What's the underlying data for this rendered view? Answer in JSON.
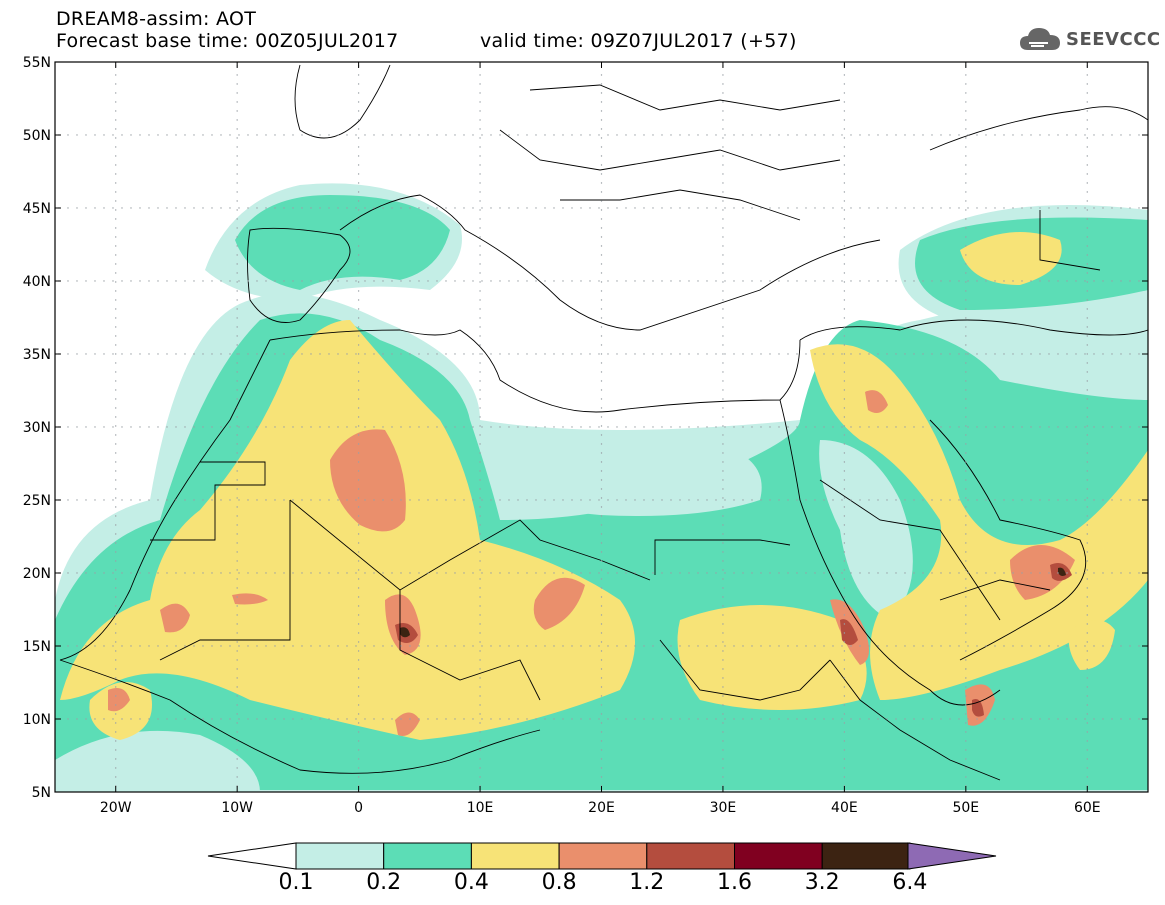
{
  "header": {
    "title_line1": "DREAM8-assim: AOT",
    "title_line2_left": "Forecast base time: 00Z05JUL2017",
    "title_line2_right": "valid time: 09Z07JUL2017 (+57)"
  },
  "logo": {
    "text": "SEEVCCC",
    "icon": "cloud-icon"
  },
  "map": {
    "lat_labels": [
      "55N",
      "50N",
      "45N",
      "40N",
      "35N",
      "30N",
      "25N",
      "20N",
      "15N",
      "10N",
      "5N"
    ],
    "lon_labels": [
      "20W",
      "10W",
      "0",
      "10E",
      "20E",
      "30E",
      "40E",
      "50E",
      "60E"
    ]
  },
  "colorbar": {
    "labels": [
      "0.1",
      "0.2",
      "0.4",
      "0.8",
      "1.2",
      "1.6",
      "3.2",
      "6.4"
    ],
    "colors": [
      "#c4eee6",
      "#5cddb6",
      "#f7e377",
      "#ea8f6c",
      "#b44d3e",
      "#800020",
      "#3c2312",
      "#8e6ab4"
    ]
  },
  "colors": {
    "c01": "#c4eee6",
    "c02": "#5cddb6",
    "c04": "#f7e377",
    "c08": "#ea8f6c",
    "c12": "#b44d3e",
    "c16": "#800020",
    "c32": "#3c2312"
  }
}
